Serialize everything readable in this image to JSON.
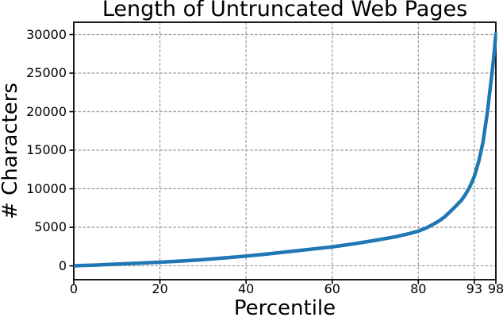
{
  "chart_data": {
    "type": "line",
    "title": "Length of Untruncated Web Pages",
    "xlabel": "Percentile",
    "ylabel": "# Characters",
    "xlim": [
      0,
      98
    ],
    "ylim": [
      -1800,
      31600
    ],
    "xticks": [
      0,
      20,
      40,
      60,
      80,
      93,
      98
    ],
    "xtick_labels": [
      "0",
      "20",
      "40",
      "60",
      "80",
      "93",
      "98"
    ],
    "yticks": [
      0,
      5000,
      10000,
      15000,
      20000,
      25000,
      30000
    ],
    "ytick_labels": [
      "0",
      "5000",
      "10000",
      "15000",
      "20000",
      "25000",
      "30000"
    ],
    "grid": true,
    "grid_color": "#999999",
    "line_color": "#1f77b4",
    "line_width": 4.5,
    "background_color": "#ffffff",
    "spine_color": "#000000",
    "legend_position": "none",
    "series": [
      {
        "x": [
          0,
          2,
          5,
          10,
          15,
          20,
          25,
          30,
          35,
          40,
          45,
          50,
          55,
          60,
          65,
          70,
          75,
          78,
          80,
          82,
          84,
          85,
          86,
          88,
          90,
          91,
          92,
          93,
          94,
          95,
          96,
          97,
          97.5,
          98
        ],
        "y": [
          0,
          40,
          100,
          220,
          340,
          470,
          620,
          800,
          1020,
          1260,
          1540,
          1850,
          2150,
          2450,
          2850,
          3300,
          3800,
          4200,
          4500,
          4950,
          5550,
          5900,
          6300,
          7350,
          8500,
          9300,
          10300,
          11600,
          13500,
          16000,
          19800,
          24500,
          27000,
          30100
        ]
      }
    ]
  }
}
